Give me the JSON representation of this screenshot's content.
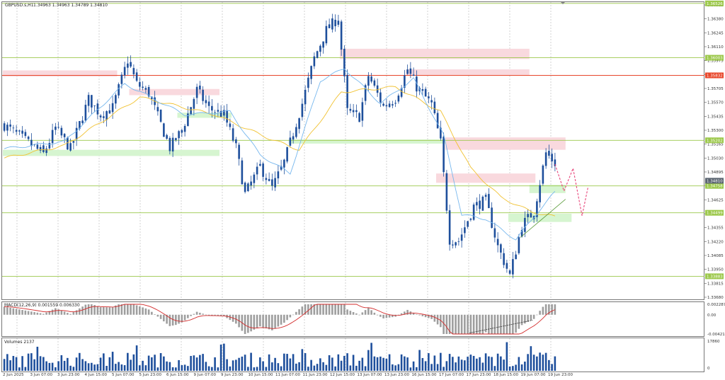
{
  "header": {
    "symbol_label": "GBPUSD.s,H1",
    "ohlc_label": "1.34963 1.34963 1.34789 1.34810"
  },
  "indicators": {
    "macd_label": "MACD(12,26,9) 0.001559 0.006330",
    "volume_label": "Volumes 2137"
  },
  "colors": {
    "candle": "#1e4f9c",
    "ma_fast": "#76b7ee",
    "ma_slow": "#f1c232",
    "level_line": "#9cc84b",
    "level_red": "#e8472b",
    "zone_red": "#f9d9de",
    "zone_green": "#d6f5d0",
    "macd_signal": "#d32b2b",
    "grid": "#c8c8c8",
    "projection": "#e8457a"
  },
  "chart_data": [
    {
      "type": "candlestick",
      "name": "price",
      "ylim": [
        1.3368,
        1.36515
      ],
      "price_ticks": [
        "1.36515",
        "1.36380",
        "1.36245",
        "1.36110",
        "1.35975",
        "1.35840",
        "1.35705",
        "1.35570",
        "1.35435",
        "1.35300",
        "1.35165",
        "1.35030",
        "1.34895",
        "1.34760",
        "1.34625",
        "1.34490",
        "1.34355",
        "1.34220",
        "1.34085",
        "1.33950",
        "1.33815",
        "1.33680"
      ],
      "time_ticks": [
        "2 Jun 2025",
        "3 Jun 07:00",
        "3 Jun 23:00",
        "4 Jun 15:00",
        "5 Jun 07:00",
        "5 Jun 23:00",
        "6 Jun 15:00",
        "9 Jun 07:00",
        "9 Jun 23:00",
        "10 Jun 15:00",
        "11 Jun 07:00",
        "11 Jun 23:00",
        "12 Jun 15:00",
        "13 Jun 07:00",
        "13 Jun 23:00",
        "16 Jun 15:00",
        "17 Jun 07:00",
        "17 Jun 23:00",
        "18 Jun 15:00",
        "19 Jun 07:00",
        "19 Jun 23:00"
      ],
      "level_lines": [
        {
          "price": 1.3653,
          "label": "1.36526",
          "color": "#9cc84b"
        },
        {
          "price": 1.36003,
          "label": "1.36003",
          "color": "#9cc84b"
        },
        {
          "price": 1.35832,
          "label": "1.35832",
          "color": "#e8472b"
        },
        {
          "price": 1.35202,
          "label": "1.35202",
          "color": "#9cc84b"
        },
        {
          "price": 1.3476,
          "label": "1.34758",
          "color": "#9cc84b"
        },
        {
          "price": 1.34499,
          "label": "1.34499",
          "color": "#9cc84b"
        },
        {
          "price": 1.33883,
          "label": "1.33883",
          "color": "#9cc84b"
        }
      ],
      "current_price": {
        "price": 1.3481,
        "label": "1.34810"
      },
      "zones": [
        {
          "from_bar": 0,
          "to_bar": 38,
          "lo": 1.3582,
          "hi": 1.3588,
          "kind": "red"
        },
        {
          "from_bar": 42,
          "to_bar": 72,
          "lo": 1.3564,
          "hi": 1.357,
          "kind": "red"
        },
        {
          "from_bar": 0,
          "to_bar": 72,
          "lo": 1.3505,
          "hi": 1.3511,
          "kind": "green"
        },
        {
          "from_bar": 58,
          "to_bar": 76,
          "lo": 1.3542,
          "hi": 1.3547,
          "kind": "green"
        },
        {
          "from_bar": 112,
          "to_bar": 175,
          "lo": 1.3599,
          "hi": 1.3609,
          "kind": "red"
        },
        {
          "from_bar": 134,
          "to_bar": 175,
          "lo": 1.3583,
          "hi": 1.3589,
          "kind": "red"
        },
        {
          "from_bar": 95,
          "to_bar": 187,
          "lo": 1.3517,
          "hi": 1.3521,
          "kind": "green"
        },
        {
          "from_bar": 147,
          "to_bar": 187,
          "lo": 1.3511,
          "hi": 1.3523,
          "kind": "red"
        },
        {
          "from_bar": 144,
          "to_bar": 177,
          "lo": 1.3479,
          "hi": 1.3488,
          "kind": "red"
        },
        {
          "from_bar": 175,
          "to_bar": 187,
          "lo": 1.3469,
          "hi": 1.3477,
          "kind": "green"
        },
        {
          "from_bar": 168,
          "to_bar": 189,
          "lo": 1.3441,
          "hi": 1.3449,
          "kind": "green"
        }
      ],
      "anchors": [
        [
          0,
          1.3535
        ],
        [
          6,
          1.3522
        ],
        [
          13,
          1.3507
        ],
        [
          17,
          1.3532
        ],
        [
          22,
          1.3512
        ],
        [
          28,
          1.356
        ],
        [
          32,
          1.3545
        ],
        [
          36,
          1.3552
        ],
        [
          41,
          1.3598
        ],
        [
          44,
          1.3575
        ],
        [
          48,
          1.3566
        ],
        [
          55,
          1.3513
        ],
        [
          59,
          1.353
        ],
        [
          64,
          1.3569
        ],
        [
          68,
          1.3551
        ],
        [
          73,
          1.3545
        ],
        [
          77,
          1.3513
        ],
        [
          80,
          1.3468
        ],
        [
          85,
          1.3495
        ],
        [
          89,
          1.3474
        ],
        [
          93,
          1.3499
        ],
        [
          99,
          1.3556
        ],
        [
          103,
          1.36
        ],
        [
          107,
          1.3627
        ],
        [
          111,
          1.3639
        ],
        [
          114,
          1.3548
        ],
        [
          118,
          1.3543
        ],
        [
          121,
          1.3583
        ],
        [
          126,
          1.3553
        ],
        [
          130,
          1.3561
        ],
        [
          134,
          1.3589
        ],
        [
          137,
          1.3572
        ],
        [
          142,
          1.3555
        ],
        [
          145,
          1.3518
        ],
        [
          148,
          1.3424
        ],
        [
          151,
          1.3423
        ],
        [
          156,
          1.3456
        ],
        [
          160,
          1.3462
        ],
        [
          164,
          1.3417
        ],
        [
          168,
          1.3389
        ],
        [
          172,
          1.3438
        ],
        [
          176,
          1.3451
        ],
        [
          180,
          1.3508
        ],
        [
          183,
          1.3498
        ]
      ],
      "ma_fast_anchors": [
        [
          0,
          1.3512
        ],
        [
          20,
          1.3519
        ],
        [
          40,
          1.3575
        ],
        [
          60,
          1.3545
        ],
        [
          75,
          1.3548
        ],
        [
          85,
          1.3506
        ],
        [
          95,
          1.3488
        ],
        [
          105,
          1.3578
        ],
        [
          113,
          1.359
        ],
        [
          125,
          1.3556
        ],
        [
          136,
          1.358
        ],
        [
          146,
          1.3525
        ],
        [
          152,
          1.3448
        ],
        [
          160,
          1.3444
        ],
        [
          170,
          1.3424
        ],
        [
          178,
          1.3453
        ],
        [
          183,
          1.347
        ]
      ],
      "ma_slow_anchors": [
        [
          0,
          1.3503
        ],
        [
          20,
          1.3515
        ],
        [
          45,
          1.3562
        ],
        [
          70,
          1.3545
        ],
        [
          88,
          1.3522
        ],
        [
          98,
          1.3511
        ],
        [
          112,
          1.3567
        ],
        [
          130,
          1.3572
        ],
        [
          145,
          1.3548
        ],
        [
          155,
          1.3493
        ],
        [
          165,
          1.3465
        ],
        [
          175,
          1.3451
        ],
        [
          183,
          1.3446
        ]
      ],
      "projection": [
        [
          183,
          1.3497
        ],
        [
          186,
          1.3471
        ],
        [
          189,
          1.3493
        ],
        [
          192,
          1.3447
        ],
        [
          194,
          1.3475
        ]
      ]
    },
    {
      "type": "histogram",
      "name": "MACD",
      "ylim": [
        -0.004216,
        0.002287
      ],
      "ticks": [
        "0.002287",
        "0.00",
        "-0.004216"
      ]
    },
    {
      "type": "bar",
      "name": "Volumes",
      "ylim": [
        0,
        17860
      ],
      "ticks": [
        "17860",
        "0"
      ]
    }
  ]
}
